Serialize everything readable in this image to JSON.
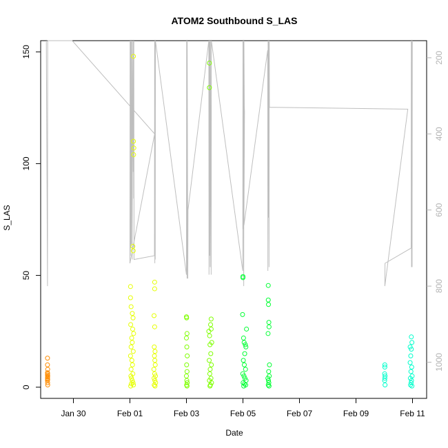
{
  "chart_data": {
    "type": "scatter",
    "title": "ATOM2 Southbound S_LAS",
    "xlabel": "Date",
    "ylabel": "S_LAS",
    "x_unit": "date",
    "xlim": [
      "2024-01-28T20:12",
      "2024-02-11T12:00"
    ],
    "ylim": [
      -5,
      155
    ],
    "x_ticks": [
      {
        "date": "2024-01-30",
        "label": "Jan 30"
      },
      {
        "date": "2024-02-01",
        "label": "Feb 01"
      },
      {
        "date": "2024-02-03",
        "label": "Feb 03"
      },
      {
        "date": "2024-02-05",
        "label": "Feb 05"
      },
      {
        "date": "2024-02-07",
        "label": "Feb 07"
      },
      {
        "date": "2024-02-09",
        "label": "Feb 09"
      },
      {
        "date": "2024-02-11",
        "label": "Feb 11"
      }
    ],
    "y_ticks": [
      0,
      50,
      100,
      150
    ],
    "y2_reversed": true,
    "y2_lim": [
      155,
      1095
    ],
    "y2_ticks": [
      200,
      400,
      600,
      800,
      1000
    ],
    "y2_color": "#b3b3b3",
    "grid": false,
    "legend": "none",
    "point_colors": [
      "#ff8c00",
      "#e6ff00",
      "#7fff00",
      "#00ff33",
      "#00ffcc"
    ],
    "scatter_series": [
      {
        "color": "#ff8c00",
        "points": [
          [
            "2024-01-29T02:00",
            13
          ],
          [
            "2024-01-29T02:00",
            10
          ],
          [
            "2024-01-29T02:10",
            8
          ],
          [
            "2024-01-29T02:00",
            6.5
          ],
          [
            "2024-01-29T02:05",
            6
          ],
          [
            "2024-01-29T02:00",
            5.5
          ],
          [
            "2024-01-29T02:10",
            5
          ],
          [
            "2024-01-29T02:05",
            4.5
          ],
          [
            "2024-01-29T02:00",
            4
          ],
          [
            "2024-01-29T02:10",
            3.5
          ],
          [
            "2024-01-29T02:00",
            3
          ],
          [
            "2024-01-29T02:05",
            2
          ],
          [
            "2024-01-29T02:10",
            1
          ]
        ]
      },
      {
        "color": "#e6ff00",
        "points": [
          [
            "2024-02-01T03:00",
            148
          ],
          [
            "2024-02-01T03:00",
            110
          ],
          [
            "2024-02-01T03:20",
            107
          ],
          [
            "2024-02-01T03:10",
            104
          ],
          [
            "2024-02-01T02:30",
            63
          ],
          [
            "2024-02-01T02:50",
            61
          ],
          [
            "2024-02-01T00:30",
            45
          ],
          [
            "2024-02-01T00:30",
            40
          ],
          [
            "2024-02-01T01:00",
            36
          ],
          [
            "2024-02-01T02:00",
            33
          ],
          [
            "2024-02-01T02:40",
            31
          ],
          [
            "2024-02-01T00:40",
            28
          ],
          [
            "2024-02-01T02:20",
            26
          ],
          [
            "2024-02-01T03:10",
            24
          ],
          [
            "2024-02-01T01:30",
            22
          ],
          [
            "2024-02-01T02:00",
            20
          ],
          [
            "2024-02-01T01:00",
            18
          ],
          [
            "2024-02-01T02:50",
            16
          ],
          [
            "2024-02-01T00:30",
            14
          ],
          [
            "2024-02-01T01:40",
            12
          ],
          [
            "2024-02-01T02:10",
            10
          ],
          [
            "2024-02-01T01:00",
            8
          ],
          [
            "2024-02-01T02:30",
            6
          ],
          [
            "2024-02-01T00:50",
            5
          ],
          [
            "2024-02-01T01:20",
            4
          ],
          [
            "2024-02-01T02:00",
            3
          ],
          [
            "2024-02-01T02:40",
            2
          ],
          [
            "2024-02-01T01:10",
            1.5
          ],
          [
            "2024-02-01T03:00",
            1
          ],
          [
            "2024-02-01T00:40",
            0.5
          ],
          [
            "2024-02-01T21:00",
            47
          ],
          [
            "2024-02-01T21:00",
            44
          ],
          [
            "2024-02-01T20:30",
            32
          ],
          [
            "2024-02-01T21:00",
            27
          ],
          [
            "2024-02-01T20:40",
            18
          ],
          [
            "2024-02-01T21:20",
            16
          ],
          [
            "2024-02-01T20:50",
            14
          ],
          [
            "2024-02-01T21:10",
            12
          ],
          [
            "2024-02-01T21:30",
            10
          ],
          [
            "2024-02-01T20:20",
            8
          ],
          [
            "2024-02-01T21:00",
            6
          ],
          [
            "2024-02-01T21:40",
            5
          ],
          [
            "2024-02-01T20:30",
            4
          ],
          [
            "2024-02-01T21:10",
            3
          ],
          [
            "2024-02-01T21:50",
            2
          ],
          [
            "2024-02-01T20:40",
            1
          ],
          [
            "2024-02-01T21:20",
            0.5
          ]
        ]
      },
      {
        "color": "#7fff00",
        "points": [
          [
            "2024-02-03T00:00",
            31.5
          ],
          [
            "2024-02-03T00:10",
            31
          ],
          [
            "2024-02-03T00:30",
            24
          ],
          [
            "2024-02-03T00:00",
            22
          ],
          [
            "2024-02-03T00:20",
            18
          ],
          [
            "2024-02-03T00:40",
            14
          ],
          [
            "2024-02-03T00:10",
            10
          ],
          [
            "2024-02-03T00:30",
            7
          ],
          [
            "2024-02-03T00:00",
            5
          ],
          [
            "2024-02-03T00:20",
            3
          ],
          [
            "2024-02-03T00:40",
            2
          ],
          [
            "2024-02-03T00:10",
            1
          ],
          [
            "2024-02-03T00:30",
            0.5
          ],
          [
            "2024-02-03T19:30",
            145
          ],
          [
            "2024-02-03T19:30",
            134
          ],
          [
            "2024-02-03T21:00",
            30.5
          ],
          [
            "2024-02-03T20:30",
            28
          ],
          [
            "2024-02-03T21:00",
            26
          ],
          [
            "2024-02-03T19:00",
            25
          ],
          [
            "2024-02-03T19:40",
            23
          ],
          [
            "2024-02-03T21:30",
            20
          ],
          [
            "2024-02-03T20:00",
            19
          ],
          [
            "2024-02-03T20:40",
            15
          ],
          [
            "2024-02-03T19:20",
            12
          ],
          [
            "2024-02-03T21:10",
            10
          ],
          [
            "2024-02-03T20:10",
            8
          ],
          [
            "2024-02-03T19:50",
            6
          ],
          [
            "2024-02-03T20:50",
            4
          ],
          [
            "2024-02-03T19:30",
            3
          ],
          [
            "2024-02-03T21:20",
            2
          ],
          [
            "2024-02-03T20:20",
            1
          ],
          [
            "2024-02-03T20:00",
            0.5
          ]
        ]
      },
      {
        "color": "#00ff33",
        "points": [
          [
            "2024-02-05T00:00",
            49.5
          ],
          [
            "2024-02-05T00:00",
            49
          ],
          [
            "2024-02-04T23:40",
            32.5
          ],
          [
            "2024-02-05T03:00",
            26
          ],
          [
            "2024-02-05T00:30",
            22
          ],
          [
            "2024-02-05T01:00",
            20
          ],
          [
            "2024-02-05T02:00",
            19
          ],
          [
            "2024-02-05T02:30",
            18
          ],
          [
            "2024-02-05T01:30",
            15
          ],
          [
            "2024-02-05T00:20",
            12
          ],
          [
            "2024-02-05T01:10",
            10
          ],
          [
            "2024-02-05T02:10",
            8
          ],
          [
            "2024-02-04T23:50",
            6
          ],
          [
            "2024-02-05T00:50",
            5
          ],
          [
            "2024-02-05T01:40",
            4
          ],
          [
            "2024-02-05T02:40",
            3
          ],
          [
            "2024-02-05T00:10",
            2
          ],
          [
            "2024-02-05T01:20",
            1.5
          ],
          [
            "2024-02-05T02:20",
            1
          ],
          [
            "2024-02-05T00:40",
            0.5
          ],
          [
            "2024-02-05T21:30",
            45.5
          ],
          [
            "2024-02-05T21:30",
            39
          ],
          [
            "2024-02-05T21:40",
            37
          ],
          [
            "2024-02-05T22:00",
            29
          ],
          [
            "2024-02-05T22:10",
            27
          ],
          [
            "2024-02-05T21:20",
            24
          ],
          [
            "2024-02-05T22:30",
            10
          ],
          [
            "2024-02-05T21:50",
            7
          ],
          [
            "2024-02-05T22:20",
            5
          ],
          [
            "2024-02-05T21:10",
            4
          ],
          [
            "2024-02-05T21:40",
            3
          ],
          [
            "2024-02-05T22:00",
            2
          ],
          [
            "2024-02-05T21:30",
            1
          ],
          [
            "2024-02-05T22:10",
            0.5
          ]
        ]
      },
      {
        "color": "#00ffcc",
        "points": [
          [
            "2024-02-10T00:30",
            10
          ],
          [
            "2024-02-10T00:30",
            9
          ],
          [
            "2024-02-10T00:20",
            6
          ],
          [
            "2024-02-10T00:40",
            5
          ],
          [
            "2024-02-10T00:30",
            4
          ],
          [
            "2024-02-10T00:20",
            3
          ],
          [
            "2024-02-10T00:40",
            1
          ],
          [
            "2024-02-10T23:00",
            22.5
          ],
          [
            "2024-02-10T23:30",
            20
          ],
          [
            "2024-02-10T22:00",
            18
          ],
          [
            "2024-02-10T23:00",
            17
          ],
          [
            "2024-02-10T22:30",
            14
          ],
          [
            "2024-02-10T22:00",
            11
          ],
          [
            "2024-02-10T23:20",
            9
          ],
          [
            "2024-02-10T22:40",
            7
          ],
          [
            "2024-02-10T23:40",
            5
          ],
          [
            "2024-02-10T22:10",
            4
          ],
          [
            "2024-02-10T23:10",
            3
          ],
          [
            "2024-02-10T22:50",
            2
          ],
          [
            "2024-02-10T22:20",
            1
          ],
          [
            "2024-02-10T23:30",
            0.5
          ]
        ]
      }
    ],
    "line_series": [
      {
        "color": "#bebebe",
        "axis": "y2",
        "points": [
          [
            "2024-01-29T01:00",
            155
          ],
          [
            "2024-01-29T02:00",
            800
          ],
          [
            "2024-01-29T02:10",
            155
          ],
          [
            "2024-01-29T23:00",
            155
          ],
          [
            "2024-02-01T21:00",
            400
          ],
          [
            "2024-02-01T00:00",
            740
          ],
          [
            "2024-02-01T00:10",
            155
          ],
          [
            "2024-02-01T00:20",
            720
          ],
          [
            "2024-02-01T00:30",
            155
          ],
          [
            "2024-02-01T00:40",
            700
          ],
          [
            "2024-02-01T00:50",
            155
          ],
          [
            "2024-02-01T01:10",
            690
          ],
          [
            "2024-02-01T01:20",
            155
          ],
          [
            "2024-02-01T02:00",
            730
          ],
          [
            "2024-02-01T02:10",
            155
          ],
          [
            "2024-02-01T02:50",
            500
          ],
          [
            "2024-02-01T03:00",
            155
          ],
          [
            "2024-02-01T03:10",
            570
          ],
          [
            "2024-02-01T03:20",
            155
          ],
          [
            "2024-02-01T03:30",
            730
          ],
          [
            "2024-02-01T20:50",
            720
          ],
          [
            "2024-02-01T21:00",
            155
          ],
          [
            "2024-02-01T21:10",
            740
          ],
          [
            "2024-02-01T21:20",
            155
          ],
          [
            "2024-02-01T21:30",
            730
          ],
          [
            "2024-02-01T21:40",
            155
          ],
          [
            "2024-02-03T00:00",
            770
          ],
          [
            "2024-02-03T00:10",
            155
          ],
          [
            "2024-02-03T00:30",
            780
          ],
          [
            "2024-02-03T00:40",
            155
          ],
          [
            "2024-02-03T01:10",
            780
          ],
          [
            "2024-02-03T01:20",
            600
          ],
          [
            "2024-02-03T19:00",
            155
          ],
          [
            "2024-02-03T19:10",
            770
          ],
          [
            "2024-02-03T19:20",
            155
          ],
          [
            "2024-02-03T19:40",
            720
          ],
          [
            "2024-02-03T19:50",
            155
          ],
          [
            "2024-02-03T20:10",
            750
          ],
          [
            "2024-02-03T20:20",
            155
          ],
          [
            "2024-02-03T21:00",
            770
          ],
          [
            "2024-02-03T21:10",
            155
          ],
          [
            "2024-02-04T23:50",
            760
          ],
          [
            "2024-02-05T00:00",
            155
          ],
          [
            "2024-02-05T00:10",
            650
          ],
          [
            "2024-02-05T00:20",
            155
          ],
          [
            "2024-02-05T00:40",
            800
          ],
          [
            "2024-02-05T00:50",
            155
          ],
          [
            "2024-02-05T01:10",
            330
          ],
          [
            "2024-02-05T01:20",
            340
          ],
          [
            "2024-02-05T00:50",
            640
          ],
          [
            "2024-02-05T21:00",
            180
          ],
          [
            "2024-02-05T21:10",
            760
          ],
          [
            "2024-02-05T21:20",
            155
          ],
          [
            "2024-02-05T21:40",
            620
          ],
          [
            "2024-02-05T21:50",
            155
          ],
          [
            "2024-02-05T22:10",
            750
          ],
          [
            "2024-02-05T22:20",
            155
          ],
          [
            "2024-02-05T22:30",
            330
          ],
          [
            "2024-02-10T20:00",
            335
          ],
          [
            "2024-02-10T00:30",
            800
          ],
          [
            "2024-02-10T00:40",
            740
          ],
          [
            "2024-02-10T22:50",
            700
          ],
          [
            "2024-02-10T23:00",
            155
          ],
          [
            "2024-02-10T23:10",
            750
          ],
          [
            "2024-02-10T23:20",
            155
          ],
          [
            "2024-02-10T23:40",
            750
          ],
          [
            "2024-02-10T23:50",
            155
          ]
        ]
      }
    ]
  }
}
